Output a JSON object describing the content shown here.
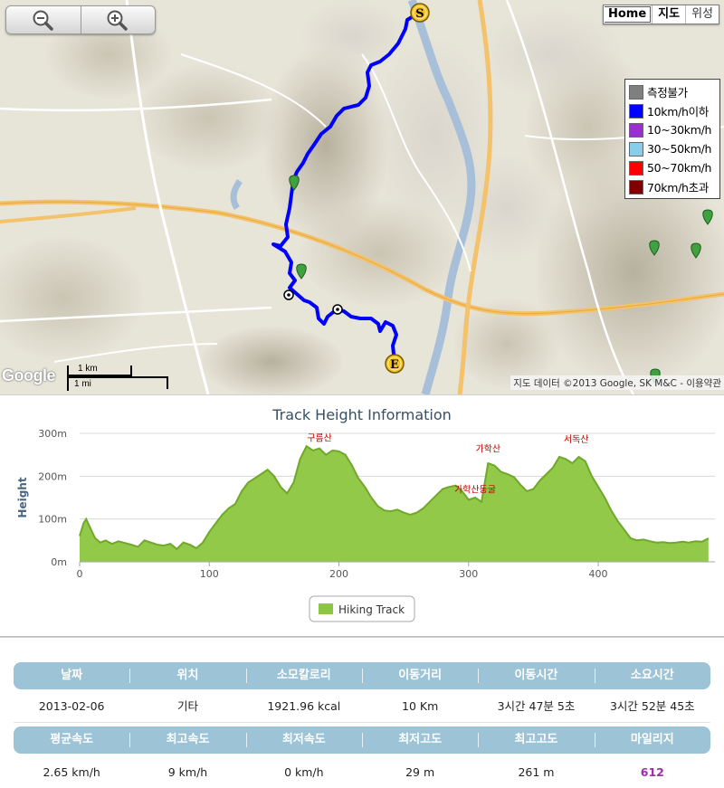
{
  "map": {
    "zoom_in_icon": "magnifier-plus-icon",
    "zoom_out_icon": "magnifier-minus-icon",
    "maptype": {
      "home": "Home",
      "map": "지도",
      "satellite": "위성"
    },
    "legend": [
      {
        "label": "측정불가",
        "color": "#7f7f7f"
      },
      {
        "label": "10km/h이하",
        "color": "#0000ff"
      },
      {
        "label": "10~30km/h",
        "color": "#9b30d0"
      },
      {
        "label": "30~50km/h",
        "color": "#87ceeb"
      },
      {
        "label": "50~70km/h",
        "color": "#ff0000"
      },
      {
        "label": "70km/h초과",
        "color": "#800000"
      }
    ],
    "start_marker": "S",
    "end_marker": "E",
    "google_logo": "Google",
    "scale": {
      "km": "1 km",
      "mi": "1 mi"
    },
    "copyright": "지도 데이터 ©2013 Google, SK M&C - 이용약관",
    "track_color": "#0000ff"
  },
  "chart_data": {
    "type": "area",
    "title": "Track Height Information",
    "ylabel": "Height",
    "xlim": [
      0,
      490
    ],
    "ylim": [
      0,
      300
    ],
    "x_ticks": [
      0,
      100,
      200,
      300,
      400
    ],
    "y_ticks": [
      {
        "value": 0,
        "label": "0m"
      },
      {
        "value": 100,
        "label": "100m"
      },
      {
        "value": 200,
        "label": "200m"
      },
      {
        "value": 300,
        "label": "300m"
      }
    ],
    "fill_color": "#8dc63f",
    "line_color": "#6fa82a",
    "grid": true,
    "legend_position": "bottom-center",
    "series": [
      {
        "name": "Hiking Track",
        "x": [
          0,
          3,
          5,
          8,
          12,
          16,
          20,
          25,
          30,
          35,
          40,
          45,
          50,
          55,
          60,
          65,
          70,
          75,
          80,
          85,
          90,
          95,
          100,
          105,
          110,
          115,
          120,
          125,
          130,
          135,
          140,
          145,
          150,
          155,
          160,
          165,
          170,
          175,
          180,
          185,
          190,
          195,
          200,
          205,
          210,
          215,
          220,
          225,
          230,
          235,
          240,
          245,
          250,
          255,
          260,
          265,
          270,
          275,
          280,
          285,
          290,
          295,
          300,
          305,
          310,
          315,
          320,
          325,
          330,
          335,
          340,
          345,
          350,
          355,
          360,
          365,
          370,
          375,
          380,
          385,
          390,
          395,
          400,
          405,
          410,
          415,
          420,
          425,
          430,
          435,
          440,
          445,
          450,
          455,
          460,
          465,
          470,
          475,
          480,
          485
        ],
        "y": [
          60,
          90,
          100,
          80,
          55,
          45,
          50,
          42,
          48,
          44,
          40,
          35,
          50,
          45,
          40,
          38,
          42,
          30,
          45,
          40,
          32,
          45,
          70,
          90,
          110,
          125,
          135,
          165,
          185,
          195,
          205,
          215,
          200,
          175,
          160,
          185,
          240,
          270,
          260,
          265,
          250,
          260,
          258,
          250,
          225,
          195,
          175,
          150,
          130,
          120,
          118,
          122,
          115,
          110,
          115,
          125,
          140,
          155,
          170,
          175,
          178,
          165,
          145,
          150,
          140,
          230,
          225,
          210,
          205,
          198,
          180,
          165,
          170,
          190,
          205,
          220,
          245,
          240,
          230,
          245,
          235,
          200,
          175,
          150,
          120,
          95,
          75,
          55,
          50,
          52,
          48,
          45,
          46,
          44,
          45,
          47,
          45,
          48,
          47,
          55
        ]
      }
    ],
    "annotations": [
      {
        "label": "구름산",
        "x": 185,
        "y": 265
      },
      {
        "label": "가학산",
        "x": 315,
        "y": 240
      },
      {
        "label": "가학산동굴",
        "x": 305,
        "y": 145
      },
      {
        "label": "서독산",
        "x": 383,
        "y": 262
      }
    ]
  },
  "stats": {
    "row1_headers": [
      "날짜",
      "위치",
      "소모칼로리",
      "이동거리",
      "이동시간",
      "소요시간"
    ],
    "row1_values": [
      "2013-02-06",
      "기타",
      "1921.96 kcal",
      "10 Km",
      "3시간 47분 5초",
      "3시간 52분 45초"
    ],
    "row2_headers": [
      "평균속도",
      "최고속도",
      "최저속도",
      "최저고도",
      "최고고도",
      "마일리지"
    ],
    "row2_values": [
      "2.65 km/h",
      "9 km/h",
      "0 km/h",
      "29 m",
      "261 m",
      "612"
    ]
  }
}
